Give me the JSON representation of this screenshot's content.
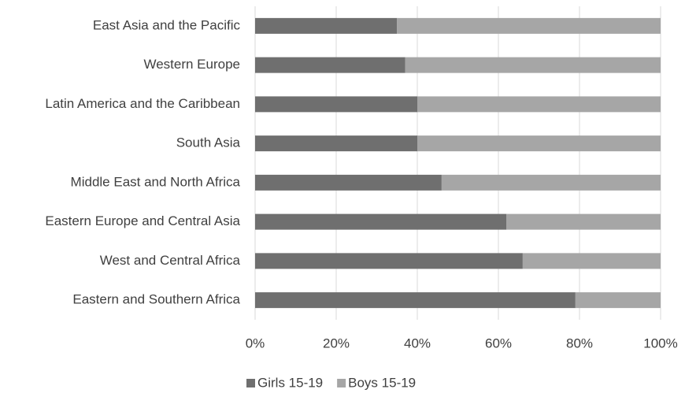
{
  "chart_data": {
    "type": "stacked-barh",
    "categories": [
      "East Asia and the Pacific",
      "Western Europe",
      "Latin America and the Caribbean",
      "South Asia",
      "Middle East and North Africa",
      "Eastern Europe and Central Asia",
      "West and Central Africa",
      "Eastern and Southern Africa"
    ],
    "series": [
      {
        "name": "Girls 15-19",
        "color": "#6f6f6f",
        "values": [
          35,
          37,
          40,
          40,
          46,
          62,
          66,
          79
        ]
      },
      {
        "name": "Boys 15-19",
        "color": "#a6a6a6",
        "values": [
          65,
          63,
          60,
          60,
          54,
          38,
          34,
          21
        ]
      }
    ],
    "xlim": [
      0,
      100
    ],
    "xticks": [
      {
        "value": 0,
        "label": "0%"
      },
      {
        "value": 20,
        "label": "20%"
      },
      {
        "value": 40,
        "label": "40%"
      },
      {
        "value": 60,
        "label": "60%"
      },
      {
        "value": 80,
        "label": "80%"
      },
      {
        "value": 100,
        "label": "100%"
      }
    ],
    "grid": true,
    "legend": "bottom"
  }
}
